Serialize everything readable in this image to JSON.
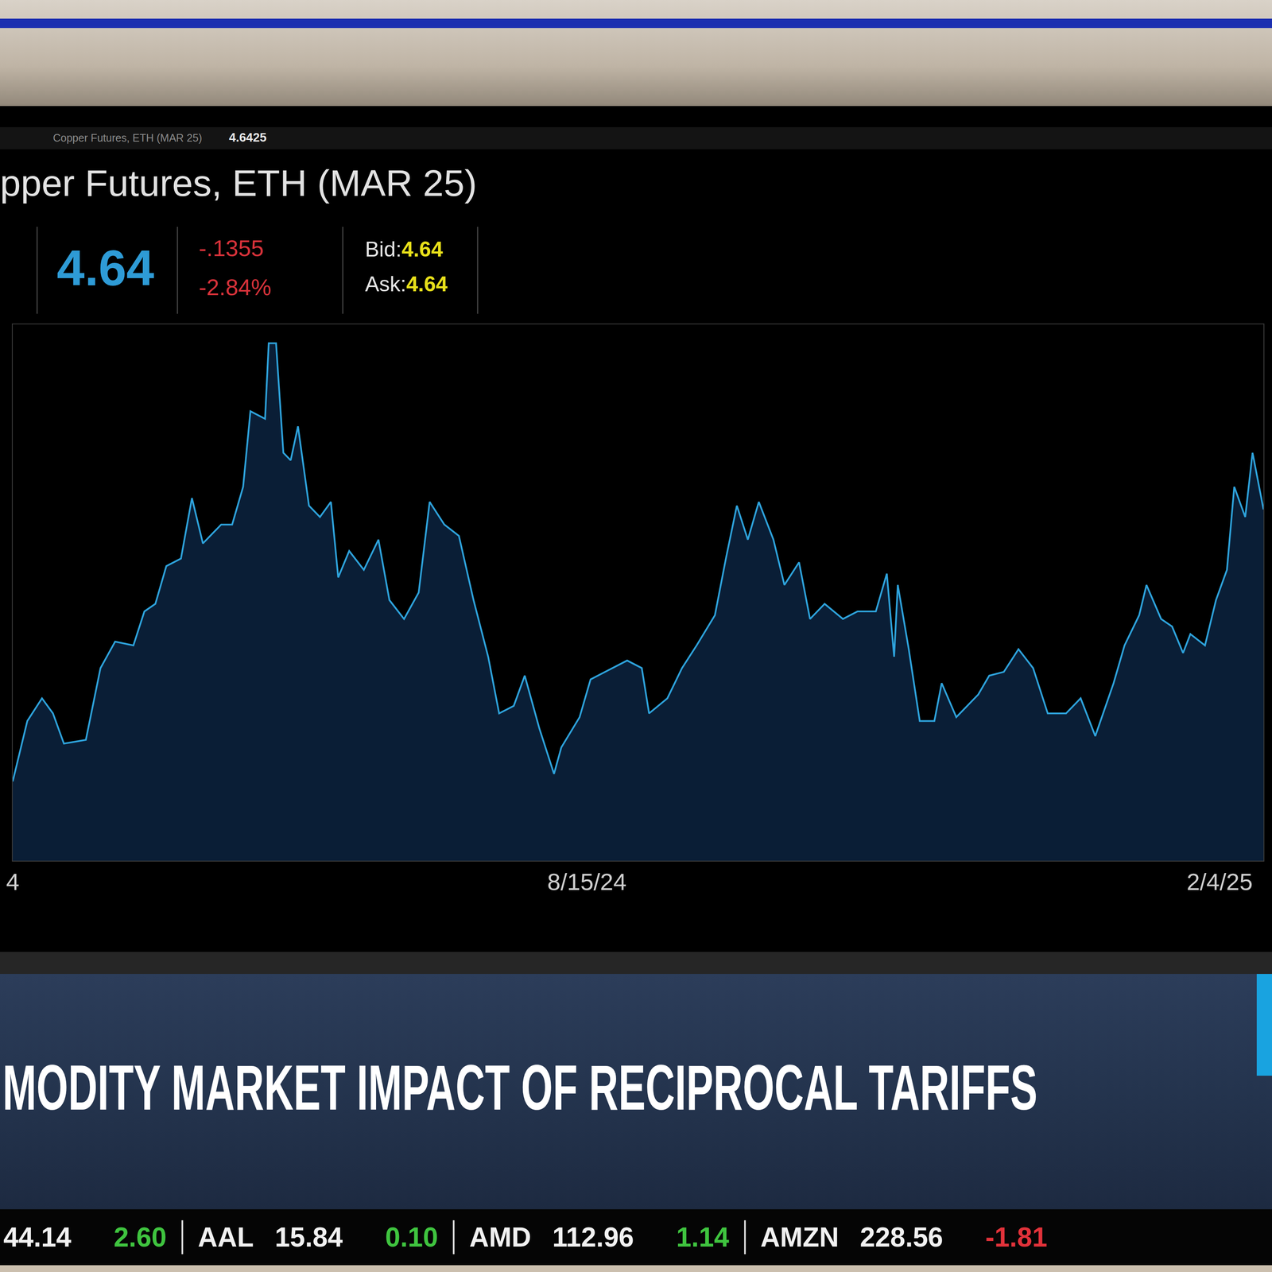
{
  "screen": {
    "toolbar": {
      "symbol_text": "Copper Futures, ETH (MAR 25)",
      "last": "4.6425"
    },
    "header": {
      "price": "4.64",
      "change": "-.1355",
      "change_pct": "-2.84%",
      "bid_label": "Bid:",
      "bid": "4.64",
      "ask_label": "Ask:",
      "ask": "4.64"
    }
  },
  "chart_data": {
    "type": "line",
    "title": "pper Futures, ETH (MAR 25)",
    "color": "#2ea3dc",
    "x": [
      "2024-03-11",
      "2024-03-15",
      "2024-03-19",
      "2024-03-22",
      "2024-03-25",
      "2024-03-31",
      "2024-04-04",
      "2024-04-08",
      "2024-04-13",
      "2024-04-16",
      "2024-04-19",
      "2024-04-22",
      "2024-04-26",
      "2024-04-29",
      "2024-05-02",
      "2024-05-07",
      "2024-05-10",
      "2024-05-13",
      "2024-05-15",
      "2024-05-19",
      "2024-05-20",
      "2024-05-22",
      "2024-05-24",
      "2024-05-26",
      "2024-05-28",
      "2024-05-31",
      "2024-06-03",
      "2024-06-06",
      "2024-06-08",
      "2024-06-11",
      "2024-06-15",
      "2024-06-19",
      "2024-06-22",
      "2024-06-26",
      "2024-06-30",
      "2024-07-03",
      "2024-07-07",
      "2024-07-11",
      "2024-07-15",
      "2024-07-19",
      "2024-07-22",
      "2024-07-26",
      "2024-07-29",
      "2024-08-02",
      "2024-08-06",
      "2024-08-08",
      "2024-08-13",
      "2024-08-16",
      "2024-08-20",
      "2024-08-26",
      "2024-08-30",
      "2024-09-01",
      "2024-09-06",
      "2024-09-10",
      "2024-09-14",
      "2024-09-19",
      "2024-09-22",
      "2024-09-25",
      "2024-09-28",
      "2024-10-01",
      "2024-10-05",
      "2024-10-08",
      "2024-10-12",
      "2024-10-15",
      "2024-10-19",
      "2024-10-24",
      "2024-10-28",
      "2024-11-02",
      "2024-11-05",
      "2024-11-07",
      "2024-11-08",
      "2024-11-11",
      "2024-11-14",
      "2024-11-18",
      "2024-11-20",
      "2024-11-24",
      "2024-11-30",
      "2024-12-03",
      "2024-12-07",
      "2024-12-11",
      "2024-12-15",
      "2024-12-19",
      "2024-12-24",
      "2024-12-28",
      "2025-01-01",
      "2025-01-06",
      "2025-01-09",
      "2025-01-13",
      "2025-01-15",
      "2025-01-19",
      "2025-01-22",
      "2025-01-25",
      "2025-01-27",
      "2025-01-31",
      "2025-02-03",
      "2025-02-06",
      "2025-02-08",
      "2025-02-11",
      "2025-02-13",
      "2025-02-16"
    ],
    "values": [
      4.03,
      4.19,
      4.25,
      4.21,
      4.13,
      4.14,
      4.33,
      4.4,
      4.39,
      4.48,
      4.5,
      4.6,
      4.62,
      4.78,
      4.66,
      4.71,
      4.71,
      4.81,
      5.01,
      4.99,
      5.19,
      5.19,
      4.9,
      4.88,
      4.97,
      4.76,
      4.73,
      4.77,
      4.57,
      4.64,
      4.59,
      4.67,
      4.51,
      4.46,
      4.53,
      4.77,
      4.71,
      4.68,
      4.51,
      4.36,
      4.21,
      4.23,
      4.31,
      4.17,
      4.05,
      4.12,
      4.2,
      4.3,
      4.32,
      4.35,
      4.33,
      4.21,
      4.25,
      4.33,
      4.39,
      4.47,
      4.62,
      4.76,
      4.67,
      4.77,
      4.67,
      4.55,
      4.61,
      4.46,
      4.5,
      4.46,
      4.48,
      4.48,
      4.58,
      4.36,
      4.55,
      4.38,
      4.19,
      4.19,
      4.29,
      4.2,
      4.26,
      4.31,
      4.32,
      4.38,
      4.33,
      4.21,
      4.21,
      4.25,
      4.15,
      4.29,
      4.39,
      4.47,
      4.55,
      4.46,
      4.44,
      4.37,
      4.42,
      4.39,
      4.51,
      4.59,
      4.81,
      4.73,
      4.9,
      4.75
    ],
    "xlim": [
      "2024-03-11",
      "2025-02-16"
    ],
    "xticks": [
      {
        "value": "2024-03-11",
        "label": "4"
      },
      {
        "value": "2024-08-15",
        "label": "8/15/24"
      },
      {
        "value": "2025-02-04",
        "label": "2/4/25"
      }
    ],
    "ylim": [
      3.82,
      5.24
    ],
    "yticks": [],
    "tick_labels": "x",
    "grid": false
  },
  "banner": "MODITY MARKET IMPACT OF RECIPROCAL TARIFFS",
  "ticker": [
    {
      "price": "44.14",
      "change": "2.60"
    },
    {
      "symbol": "AAL",
      "price": "15.84",
      "change": "0.10"
    },
    {
      "symbol": "AMD",
      "price": "112.96",
      "change": "1.14"
    },
    {
      "symbol": "AMZN",
      "price": "228.56",
      "change": "-1.81"
    }
  ]
}
